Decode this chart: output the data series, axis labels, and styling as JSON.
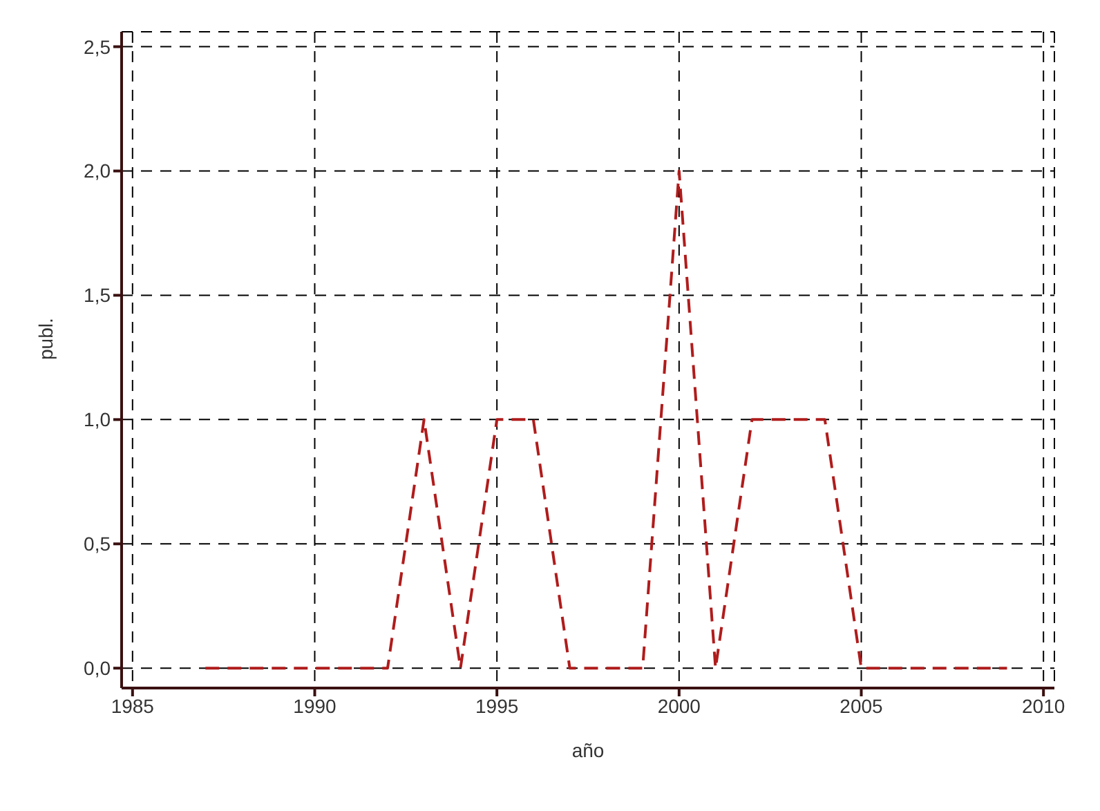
{
  "chart_data": {
    "type": "line",
    "xlabel": "año",
    "ylabel": "publ.",
    "x": [
      1987,
      1988,
      1989,
      1990,
      1991,
      1992,
      1993,
      1994,
      1995,
      1996,
      1997,
      1998,
      1999,
      2000,
      2001,
      2002,
      2003,
      2004,
      2005,
      2006,
      2007,
      2008,
      2009
    ],
    "series": [
      {
        "color": "#b01c1c",
        "values": [
          0,
          0,
          0,
          0,
          0,
          0,
          1,
          0,
          1,
          1,
          0,
          0,
          0,
          2,
          0,
          1,
          1,
          1,
          0,
          0,
          0,
          0,
          0
        ]
      }
    ],
    "xlim": [
      1984.7,
      2010.3
    ],
    "xticks": [
      1985,
      1990,
      1995,
      2000,
      2005,
      2010
    ],
    "ylim": [
      -0.08,
      2.56
    ],
    "yticks": [
      {
        "value": 0,
        "label": "0,0"
      },
      {
        "value": 0.5,
        "label": "0,5"
      },
      {
        "value": 1,
        "label": "1,0"
      },
      {
        "value": 1.5,
        "label": "1,5"
      },
      {
        "value": 2,
        "label": "2,0"
      },
      {
        "value": 2.5,
        "label": "2,5"
      }
    ],
    "grid": true,
    "line_style": "dashed",
    "marker": "none"
  }
}
